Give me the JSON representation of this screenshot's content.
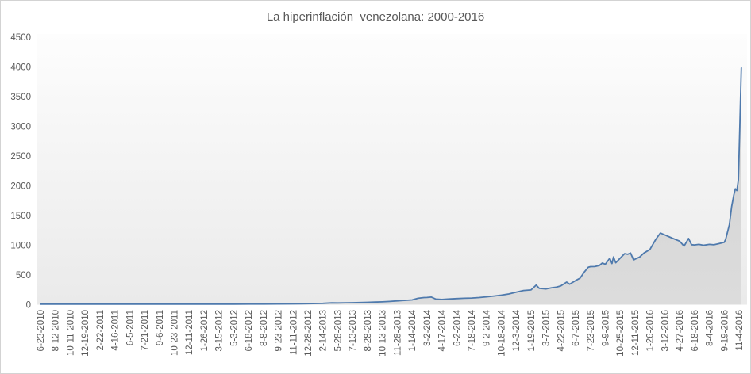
{
  "chart_data": {
    "type": "area",
    "title": "La hiperinflación  venezolana: 2000-2016",
    "xlabel": "",
    "ylabel": "",
    "legend": "none",
    "grid": false,
    "ylim": [
      0,
      4500
    ],
    "yticks": [
      0,
      500,
      1000,
      1500,
      2000,
      2500,
      3000,
      3500,
      4000,
      4500
    ],
    "categories": [
      "6-23-2010",
      "8-12-2010",
      "10-11-2010",
      "12-19-2010",
      "2-22-2011",
      "4-16-2011",
      "6-5-2011",
      "7-21-2011",
      "9-6-2011",
      "10-23-2011",
      "12-11-2011",
      "1-26-2012",
      "3-15-2012",
      "5-3-2012",
      "6-18-2012",
      "8-8-2012",
      "9-23-2012",
      "11-11-2012",
      "12-28-2012",
      "2-14-2013",
      "5-28-2013",
      "7-13-2013",
      "8-28-2013",
      "10-13-2013",
      "11-28-2013",
      "1-14-2014",
      "3-2-2014",
      "4-17-2014",
      "6-2-2014",
      "7-18-2014",
      "9-2-2014",
      "10-18-2014",
      "12-3-2014",
      "1-19-2015",
      "3-7-2015",
      "4-22-2015",
      "6-7-2015",
      "7-23-2015",
      "9-9-2015",
      "10-25-2015",
      "12-11-2015",
      "1-26-2016",
      "3-12-2016",
      "4-27-2016",
      "6-18-2016",
      "8-4-2016",
      "9-19-2016",
      "11-4-2016"
    ],
    "values": [
      8,
      8,
      9,
      9,
      9,
      9,
      9,
      9,
      9,
      9,
      9,
      10,
      10,
      10,
      11,
      11,
      12,
      13,
      17,
      23,
      30,
      33,
      40,
      48,
      64,
      80,
      122,
      88,
      103,
      112,
      132,
      160,
      210,
      248,
      265,
      315,
      405,
      640,
      680,
      781,
      765,
      930,
      1175,
      1070,
      1005,
      1015,
      1050,
      2100
    ],
    "final_value": 3985,
    "detail_points": [
      [
        0,
        8
      ],
      [
        1,
        8
      ],
      [
        2,
        9
      ],
      [
        3,
        9
      ],
      [
        4,
        9
      ],
      [
        5,
        9
      ],
      [
        6,
        9
      ],
      [
        7,
        9
      ],
      [
        8,
        9
      ],
      [
        9,
        9
      ],
      [
        10,
        9
      ],
      [
        11,
        10
      ],
      [
        12,
        10
      ],
      [
        13,
        10
      ],
      [
        14,
        11
      ],
      [
        15,
        11
      ],
      [
        16,
        12
      ],
      [
        17,
        13
      ],
      [
        18,
        17
      ],
      [
        19,
        23
      ],
      [
        19.6,
        31
      ],
      [
        20,
        30
      ],
      [
        20.5,
        32
      ],
      [
        21,
        33
      ],
      [
        21.5,
        36
      ],
      [
        22,
        40
      ],
      [
        22.5,
        44
      ],
      [
        23,
        48
      ],
      [
        23.5,
        55
      ],
      [
        24,
        64
      ],
      [
        24.5,
        72
      ],
      [
        25,
        80
      ],
      [
        25.4,
        108
      ],
      [
        25.8,
        120
      ],
      [
        26,
        122
      ],
      [
        26.3,
        128
      ],
      [
        26.6,
        95
      ],
      [
        27,
        88
      ],
      [
        27.5,
        96
      ],
      [
        28,
        103
      ],
      [
        28.5,
        108
      ],
      [
        29,
        112
      ],
      [
        29.5,
        120
      ],
      [
        30,
        132
      ],
      [
        30.5,
        145
      ],
      [
        31,
        160
      ],
      [
        31.5,
        180
      ],
      [
        32,
        210
      ],
      [
        32.5,
        238
      ],
      [
        33,
        248
      ],
      [
        33.35,
        330
      ],
      [
        33.55,
        276
      ],
      [
        34,
        265
      ],
      [
        34.4,
        285
      ],
      [
        34.7,
        295
      ],
      [
        35,
        315
      ],
      [
        35.4,
        380
      ],
      [
        35.6,
        345
      ],
      [
        36,
        405
      ],
      [
        36.3,
        447
      ],
      [
        36.6,
        555
      ],
      [
        36.85,
        630
      ],
      [
        37,
        640
      ],
      [
        37.3,
        642
      ],
      [
        37.6,
        660
      ],
      [
        37.8,
        700
      ],
      [
        38,
        680
      ],
      [
        38.3,
        781
      ],
      [
        38.45,
        692
      ],
      [
        38.55,
        803
      ],
      [
        38.7,
        705
      ],
      [
        39,
        781
      ],
      [
        39.3,
        858
      ],
      [
        39.5,
        848
      ],
      [
        39.7,
        870
      ],
      [
        39.9,
        752
      ],
      [
        40,
        765
      ],
      [
        40.3,
        800
      ],
      [
        40.6,
        870
      ],
      [
        41,
        930
      ],
      [
        41.4,
        1100
      ],
      [
        41.7,
        1205
      ],
      [
        42,
        1175
      ],
      [
        42.5,
        1120
      ],
      [
        43,
        1070
      ],
      [
        43.3,
        985
      ],
      [
        43.6,
        1115
      ],
      [
        43.8,
        1010
      ],
      [
        44,
        1005
      ],
      [
        44.3,
        1015
      ],
      [
        44.6,
        1000
      ],
      [
        45,
        1015
      ],
      [
        45.3,
        1008
      ],
      [
        45.6,
        1025
      ],
      [
        46,
        1050
      ],
      [
        46.1,
        1100
      ],
      [
        46.35,
        1350
      ],
      [
        46.5,
        1650
      ],
      [
        46.65,
        1850
      ],
      [
        46.75,
        1950
      ],
      [
        46.85,
        1920
      ],
      [
        46.95,
        2100
      ],
      [
        47.05,
        3000
      ],
      [
        47.15,
        3985
      ]
    ],
    "colors": {
      "line": "#4f7aad",
      "area_top": "#d2d2d2",
      "area_bottom": "#dcdcdc",
      "plot_bg_top": "#fdfdfd",
      "plot_bg_bottom": "#eaeaea",
      "text": "#595959",
      "frame_border": "#d3d3d3"
    }
  }
}
